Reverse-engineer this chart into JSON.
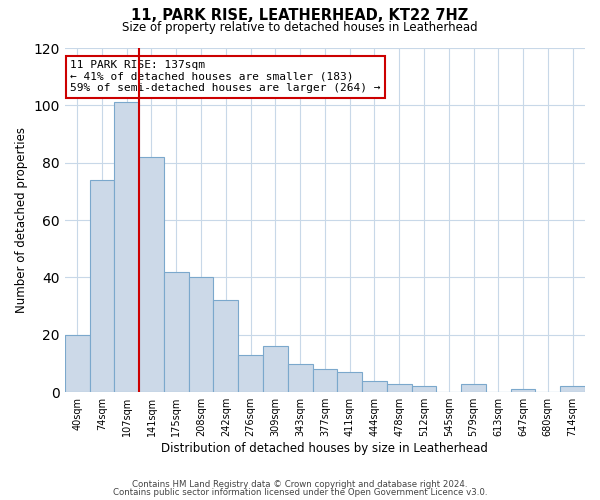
{
  "title": "11, PARK RISE, LEATHERHEAD, KT22 7HZ",
  "subtitle": "Size of property relative to detached houses in Leatherhead",
  "xlabel": "Distribution of detached houses by size in Leatherhead",
  "ylabel": "Number of detached properties",
  "bin_labels": [
    "40sqm",
    "74sqm",
    "107sqm",
    "141sqm",
    "175sqm",
    "208sqm",
    "242sqm",
    "276sqm",
    "309sqm",
    "343sqm",
    "377sqm",
    "411sqm",
    "444sqm",
    "478sqm",
    "512sqm",
    "545sqm",
    "579sqm",
    "613sqm",
    "647sqm",
    "680sqm",
    "714sqm"
  ],
  "bar_heights": [
    20,
    74,
    101,
    82,
    42,
    40,
    32,
    13,
    16,
    10,
    8,
    7,
    4,
    3,
    2,
    0,
    3,
    0,
    1,
    0,
    2
  ],
  "bar_color": "#ccd9e8",
  "bar_edge_color": "#7ba8cc",
  "vline_color": "#cc0000",
  "vline_x_index": 2,
  "annotation_title": "11 PARK RISE: 137sqm",
  "annotation_line1": "← 41% of detached houses are smaller (183)",
  "annotation_line2": "59% of semi-detached houses are larger (264) →",
  "annotation_box_color": "#ffffff",
  "annotation_box_edgecolor": "#cc0000",
  "ylim": [
    0,
    120
  ],
  "yticks": [
    0,
    20,
    40,
    60,
    80,
    100,
    120
  ],
  "footer1": "Contains HM Land Registry data © Crown copyright and database right 2024.",
  "footer2": "Contains public sector information licensed under the Open Government Licence v3.0.",
  "bg_color": "#ffffff",
  "grid_color": "#c8d8e8"
}
